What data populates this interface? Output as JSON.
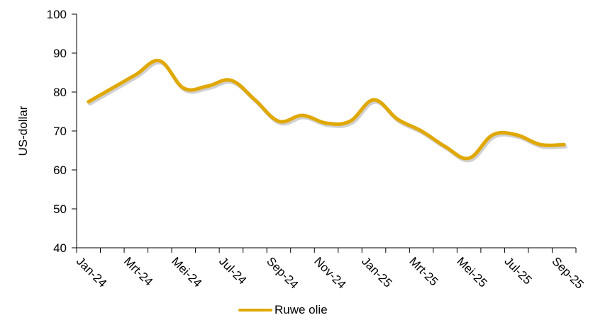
{
  "chart_data": {
    "type": "line",
    "ylabel": "US-dollar",
    "ylim": [
      40,
      100
    ],
    "yticks": [
      "40",
      "50",
      "60",
      "70",
      "80",
      "90",
      "100"
    ],
    "categories": [
      "Jan-24",
      "Mrt-24",
      "Mei-24",
      "Jul-24",
      "Sep-24",
      "Nov-24",
      "Jan-25",
      "Mrt-25",
      "Mei-25",
      "Jul-25",
      "Sep-25"
    ],
    "series": [
      {
        "name": "Ruwe olie",
        "color": "#e0a800",
        "x": [
          "Jan-24",
          "Feb-24",
          "Mrt-24",
          "Apr-24",
          "Mei-24",
          "Jun-24",
          "Jul-24",
          "Aug-24",
          "Sep-24",
          "Okt-24",
          "Nov-24",
          "Dec-24",
          "Jan-25",
          "Feb-25",
          "Mrt-25",
          "Apr-25",
          "Mei-25",
          "Jun-25",
          "Jul-25",
          "Aug-25",
          "Sep-25"
        ],
        "values": [
          77.5,
          81,
          84.5,
          88,
          81,
          81.5,
          83,
          78,
          72.5,
          74,
          72,
          72.5,
          78,
          73,
          70,
          66,
          63,
          69,
          69,
          66.5,
          66.5
        ]
      }
    ],
    "grid": false,
    "legend_position": "bottom"
  }
}
